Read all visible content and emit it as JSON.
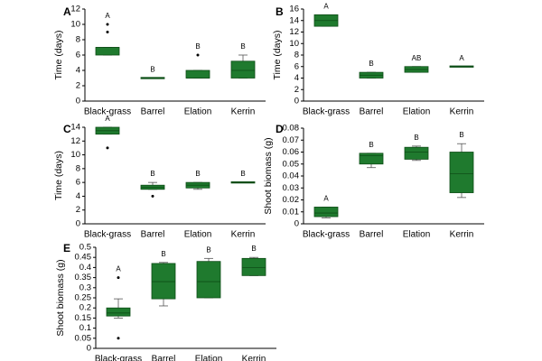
{
  "figure": {
    "box_color": "#1f7a2e",
    "box_edge": "#0e4d17",
    "axis_color": "#000000"
  },
  "chart_data": [
    {
      "panel": "A",
      "type": "box",
      "ylabel": "Time (days)",
      "ylim": [
        0,
        12
      ],
      "yticks": [
        0,
        2,
        4,
        6,
        8,
        10,
        12
      ],
      "categories": [
        "Black-grass",
        "Barrel",
        "Elation",
        "Kerrin"
      ],
      "boxes": [
        {
          "q1": 6,
          "median": 7,
          "q3": 7,
          "wlo": 6,
          "whi": 7,
          "outliers": [
            9,
            10
          ],
          "letter": "A"
        },
        {
          "q1": 3,
          "median": 3,
          "q3": 3,
          "wlo": 3,
          "whi": 3,
          "outliers": [],
          "letter": "B"
        },
        {
          "q1": 3,
          "median": 3,
          "q3": 4,
          "wlo": 3,
          "whi": 4,
          "outliers": [
            6
          ],
          "letter": "B"
        },
        {
          "q1": 3,
          "median": 4,
          "q3": 5.2,
          "wlo": 3,
          "whi": 6,
          "outliers": [],
          "letter": "B"
        }
      ]
    },
    {
      "panel": "B",
      "type": "box",
      "ylabel": "Time (days)",
      "ylim": [
        0,
        16
      ],
      "yticks": [
        0,
        2,
        4,
        6,
        8,
        10,
        12,
        14,
        16
      ],
      "categories": [
        "Black-grass",
        "Barrel",
        "Elation",
        "Kerrin"
      ],
      "boxes": [
        {
          "q1": 13,
          "median": 14,
          "q3": 15,
          "wlo": 13,
          "whi": 15,
          "outliers": [],
          "letter": "A"
        },
        {
          "q1": 4,
          "median": 4.5,
          "q3": 5,
          "wlo": 4,
          "whi": 5,
          "outliers": [],
          "letter": "B"
        },
        {
          "q1": 5,
          "median": 5.5,
          "q3": 6,
          "wlo": 5,
          "whi": 6,
          "outliers": [],
          "letter": "AB"
        },
        {
          "q1": 6,
          "median": 6,
          "q3": 6,
          "wlo": 6,
          "whi": 6,
          "outliers": [],
          "letter": "A"
        }
      ]
    },
    {
      "panel": "C",
      "type": "box",
      "ylabel": "Time (days)",
      "ylim": [
        0,
        14
      ],
      "yticks": [
        0,
        2,
        4,
        6,
        8,
        10,
        12,
        14
      ],
      "categories": [
        "Black-grass",
        "Barrel",
        "Elation",
        "Kerrin"
      ],
      "boxes": [
        {
          "q1": 13,
          "median": 13.5,
          "q3": 14,
          "wlo": 13,
          "whi": 14,
          "outliers": [
            11
          ],
          "letter": "A"
        },
        {
          "q1": 5,
          "median": 5.3,
          "q3": 5.6,
          "wlo": 5,
          "whi": 6,
          "outliers": [
            4
          ],
          "letter": "B"
        },
        {
          "q1": 5.2,
          "median": 5.6,
          "q3": 6,
          "wlo": 5,
          "whi": 6,
          "outliers": [],
          "letter": "B"
        },
        {
          "q1": 6,
          "median": 6,
          "q3": 6,
          "wlo": 6,
          "whi": 6,
          "outliers": [],
          "letter": "B"
        }
      ]
    },
    {
      "panel": "D",
      "type": "box",
      "ylabel": "Shoot biomass (g)",
      "ylim": [
        0,
        0.08
      ],
      "yticks": [
        0,
        0.01,
        0.02,
        0.03,
        0.04,
        0.05,
        0.06,
        0.07,
        0.08
      ],
      "decimals": 2,
      "categories": [
        "Black-grass",
        "Barrel",
        "Elation",
        "Kerrin"
      ],
      "boxes": [
        {
          "q1": 0.006,
          "median": 0.009,
          "q3": 0.014,
          "wlo": 0.005,
          "whi": 0.014,
          "outliers": [],
          "letter": "A"
        },
        {
          "q1": 0.05,
          "median": 0.057,
          "q3": 0.059,
          "wlo": 0.047,
          "whi": 0.059,
          "outliers": [],
          "letter": "B"
        },
        {
          "q1": 0.054,
          "median": 0.06,
          "q3": 0.064,
          "wlo": 0.053,
          "whi": 0.065,
          "outliers": [],
          "letter": "B"
        },
        {
          "q1": 0.026,
          "median": 0.042,
          "q3": 0.06,
          "wlo": 0.022,
          "whi": 0.067,
          "outliers": [],
          "letter": "B"
        }
      ]
    },
    {
      "panel": "E",
      "type": "box",
      "ylabel": "Shoot biomass (g)",
      "ylim": [
        0,
        0.5
      ],
      "yticks": [
        0,
        0.05,
        0.1,
        0.15,
        0.2,
        0.25,
        0.3,
        0.35,
        0.4,
        0.45,
        0.5
      ],
      "decimals": 2,
      "categories": [
        "Black-grass",
        "Barrel",
        "Elation",
        "Kerrin"
      ],
      "boxes": [
        {
          "q1": 0.16,
          "median": 0.175,
          "q3": 0.2,
          "wlo": 0.15,
          "whi": 0.245,
          "outliers": [
            0.35,
            0.05
          ],
          "letter": "A"
        },
        {
          "q1": 0.245,
          "median": 0.33,
          "q3": 0.42,
          "wlo": 0.21,
          "whi": 0.425,
          "outliers": [],
          "letter": "B"
        },
        {
          "q1": 0.25,
          "median": 0.33,
          "q3": 0.43,
          "wlo": 0.25,
          "whi": 0.445,
          "outliers": [],
          "letter": "B"
        },
        {
          "q1": 0.36,
          "median": 0.4,
          "q3": 0.445,
          "wlo": 0.36,
          "whi": 0.45,
          "outliers": [],
          "letter": "B"
        }
      ]
    }
  ]
}
